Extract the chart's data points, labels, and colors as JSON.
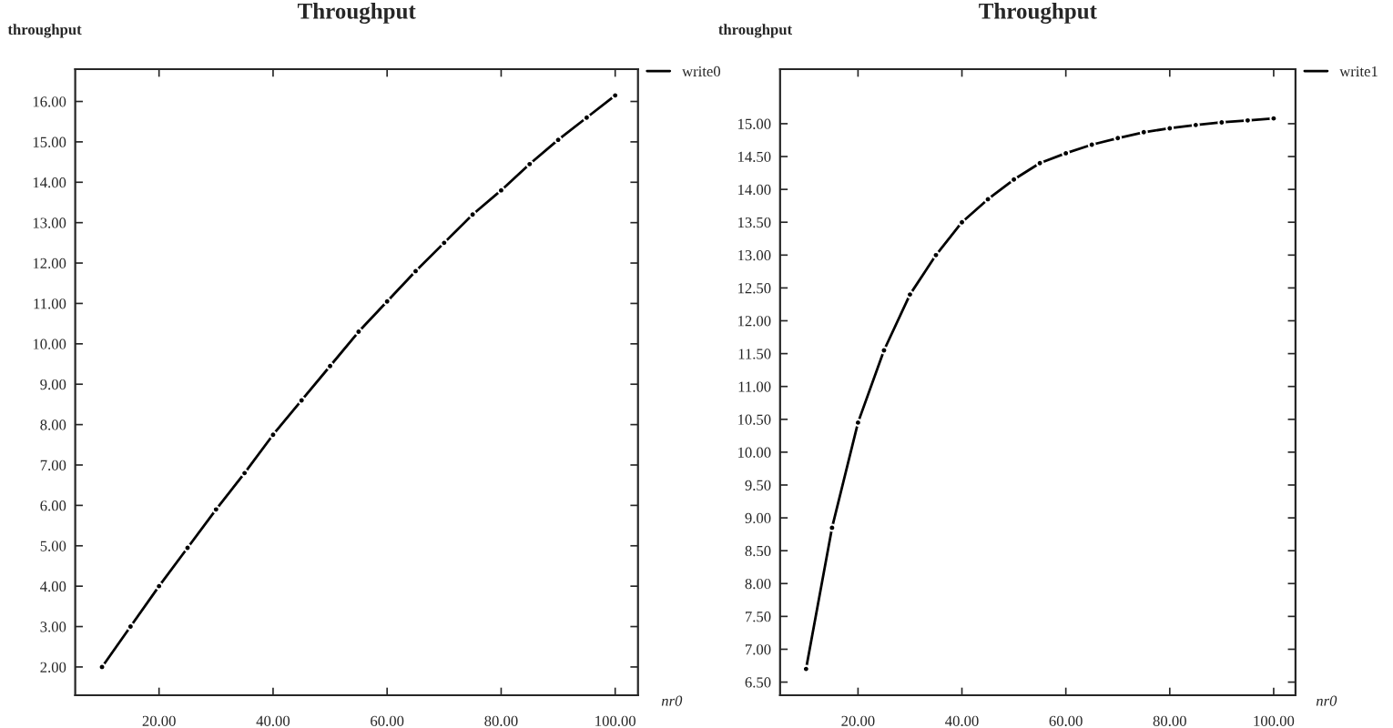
{
  "chart_data": [
    {
      "type": "line",
      "title": "Throughput",
      "xlabel": "nr0",
      "ylabel": "throughput",
      "x": [
        10,
        15,
        20,
        25,
        30,
        35,
        40,
        45,
        50,
        55,
        60,
        65,
        70,
        75,
        80,
        85,
        90,
        95,
        100
      ],
      "series": [
        {
          "name": "write0",
          "color": "#000000",
          "values": [
            2.0,
            3.0,
            4.0,
            4.95,
            5.9,
            6.8,
            7.75,
            8.6,
            9.45,
            10.3,
            11.05,
            11.8,
            12.5,
            13.2,
            13.8,
            14.45,
            15.05,
            15.6,
            16.15
          ]
        }
      ],
      "xlim": [
        5.3,
        104
      ],
      "ylim": [
        1.3,
        16.8
      ],
      "xticks": [
        {
          "value": 20,
          "label": "20.00"
        },
        {
          "value": 40,
          "label": "40.00"
        },
        {
          "value": 60,
          "label": "60.00"
        },
        {
          "value": 80,
          "label": "80.00"
        },
        {
          "value": 100,
          "label": "100.00"
        }
      ],
      "yticks": [
        {
          "value": 2,
          "label": "2.00"
        },
        {
          "value": 3,
          "label": "3.00"
        },
        {
          "value": 4,
          "label": "4.00"
        },
        {
          "value": 5,
          "label": "5.00"
        },
        {
          "value": 6,
          "label": "6.00"
        },
        {
          "value": 7,
          "label": "7.00"
        },
        {
          "value": 8,
          "label": "8.00"
        },
        {
          "value": 9,
          "label": "9.00"
        },
        {
          "value": 10,
          "label": "10.00"
        },
        {
          "value": 11,
          "label": "11.00"
        },
        {
          "value": 12,
          "label": "12.00"
        },
        {
          "value": 13,
          "label": "13.00"
        },
        {
          "value": 14,
          "label": "14.00"
        },
        {
          "value": 15,
          "label": "15.00"
        },
        {
          "value": 16,
          "label": "16.00"
        }
      ],
      "legend": "top right",
      "marker": "circle",
      "line_style": "solid",
      "grid": false
    },
    {
      "type": "line",
      "title": "Throughput",
      "xlabel": "nr0",
      "ylabel": "throughput",
      "x": [
        10,
        15,
        20,
        25,
        30,
        35,
        40,
        45,
        50,
        55,
        60,
        65,
        70,
        75,
        80,
        85,
        90,
        95,
        100
      ],
      "series": [
        {
          "name": "write1",
          "color": "#000000",
          "values": [
            6.7,
            8.85,
            10.45,
            11.55,
            12.4,
            13.0,
            13.5,
            13.85,
            14.15,
            14.4,
            14.55,
            14.68,
            14.78,
            14.87,
            14.93,
            14.98,
            15.02,
            15.05,
            15.08
          ]
        }
      ],
      "xlim": [
        5,
        104.2
      ],
      "ylim": [
        6.3,
        15.83
      ],
      "xticks": [
        {
          "value": 20,
          "label": "20.00"
        },
        {
          "value": 40,
          "label": "40.00"
        },
        {
          "value": 60,
          "label": "60.00"
        },
        {
          "value": 80,
          "label": "80.00"
        },
        {
          "value": 100,
          "label": "100.00"
        }
      ],
      "yticks": [
        {
          "value": 6.5,
          "label": "6.50"
        },
        {
          "value": 7,
          "label": "7.00"
        },
        {
          "value": 7.5,
          "label": "7.50"
        },
        {
          "value": 8,
          "label": "8.00"
        },
        {
          "value": 8.5,
          "label": "8.50"
        },
        {
          "value": 9,
          "label": "9.00"
        },
        {
          "value": 9.5,
          "label": "9.50"
        },
        {
          "value": 10,
          "label": "10.00"
        },
        {
          "value": 10.5,
          "label": "10.50"
        },
        {
          "value": 11,
          "label": "11.00"
        },
        {
          "value": 11.5,
          "label": "11.50"
        },
        {
          "value": 12,
          "label": "12.00"
        },
        {
          "value": 12.5,
          "label": "12.50"
        },
        {
          "value": 13,
          "label": "13.00"
        },
        {
          "value": 13.5,
          "label": "13.50"
        },
        {
          "value": 14,
          "label": "14.00"
        },
        {
          "value": 14.5,
          "label": "14.50"
        },
        {
          "value": 15,
          "label": "15.00"
        }
      ],
      "legend": "top right",
      "marker": "circle",
      "line_style": "solid",
      "grid": false
    }
  ]
}
